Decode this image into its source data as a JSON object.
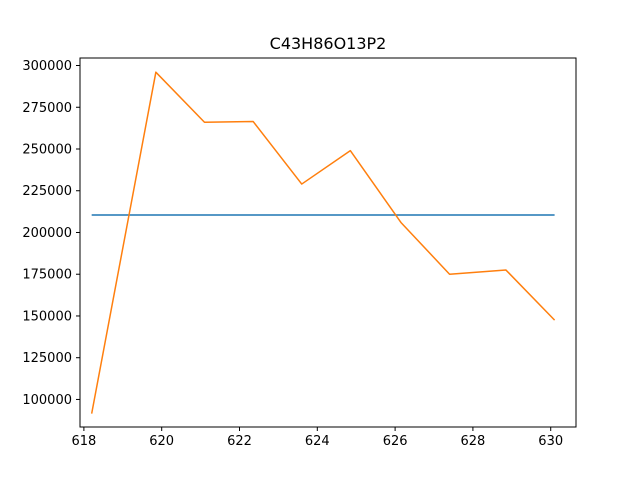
{
  "chart_data": {
    "type": "line",
    "title": "C43H86O13P2",
    "xlabel": "",
    "ylabel": "",
    "xlim": [
      617.9,
      630.65
    ],
    "ylim": [
      83500,
      304500
    ],
    "x_ticks": [
      618,
      620,
      622,
      624,
      626,
      628,
      630
    ],
    "y_ticks": [
      100000,
      125000,
      150000,
      175000,
      200000,
      225000,
      250000,
      275000,
      300000
    ],
    "grid": false,
    "series": [
      {
        "color": "#1f77b4",
        "x": [
          618.2,
          630.1
        ],
        "y": [
          210500,
          210500
        ]
      },
      {
        "color": "#ff7f0e",
        "x": [
          618.2,
          619.85,
          621.1,
          622.35,
          623.6,
          624.85,
          626.15,
          627.4,
          628.85,
          630.1
        ],
        "y": [
          91500,
          296000,
          266000,
          266500,
          229000,
          249000,
          206000,
          175000,
          177500,
          147500
        ]
      }
    ]
  }
}
